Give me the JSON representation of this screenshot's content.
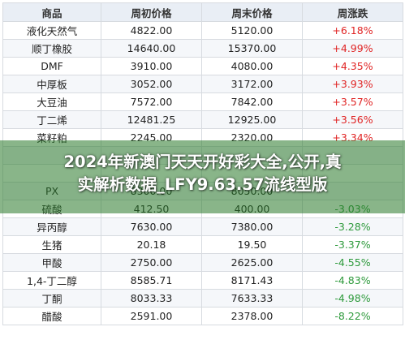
{
  "table": {
    "headers": [
      "商品",
      "周初价格",
      "周末价格",
      "周涨跌"
    ],
    "rows": [
      {
        "name": "液化天然气",
        "start": "4822.00",
        "end": "5120.00",
        "change": "+6.18%",
        "dir": "up"
      },
      {
        "name": "顺丁橡胶",
        "start": "14640.00",
        "end": "15370.00",
        "change": "+4.99%",
        "dir": "up"
      },
      {
        "name": "DMF",
        "start": "3910.00",
        "end": "4080.00",
        "change": "+4.35%",
        "dir": "up"
      },
      {
        "name": "中厚板",
        "start": "3052.00",
        "end": "3172.00",
        "change": "+3.93%",
        "dir": "up"
      },
      {
        "name": "大豆油",
        "start": "7572.00",
        "end": "7842.00",
        "change": "+3.57%",
        "dir": "up"
      },
      {
        "name": "丁二烯",
        "start": "12481.25",
        "end": "12925.00",
        "change": "+3.56%",
        "dir": "up"
      },
      {
        "name": "菜籽粕",
        "start": "2245.00",
        "end": "2320.00",
        "change": "+3.34%",
        "dir": "up"
      },
      {
        "name": "",
        "start": "",
        "end": "",
        "change": "",
        "dir": "up"
      },
      {
        "name": "",
        "start": "",
        "end": "",
        "change": "",
        "dir": "up"
      },
      {
        "name": "PX",
        "start": "8300.00",
        "end": "8050.00",
        "change": "",
        "dir": "down"
      },
      {
        "name": "硫酸",
        "start": "412.50",
        "end": "400.00",
        "change": "-3.03%",
        "dir": "down"
      },
      {
        "name": "异丙醇",
        "start": "7630.00",
        "end": "7380.00",
        "change": "-3.28%",
        "dir": "down"
      },
      {
        "name": "生猪",
        "start": "20.18",
        "end": "19.50",
        "change": "-3.37%",
        "dir": "down"
      },
      {
        "name": "甲酸",
        "start": "2750.00",
        "end": "2625.00",
        "change": "-4.55%",
        "dir": "down"
      },
      {
        "name": "1,4-丁二醇",
        "start": "8585.71",
        "end": "8171.43",
        "change": "-4.83%",
        "dir": "down"
      },
      {
        "name": "丁酮",
        "start": "8033.33",
        "end": "7633.33",
        "change": "-4.98%",
        "dir": "down"
      },
      {
        "name": "醋酸",
        "start": "2591.00",
        "end": "2378.00",
        "change": "-8.22%",
        "dir": "down"
      }
    ]
  },
  "banner": {
    "line1": "2024年新澳门天天开好彩大全,公开,真",
    "line2": "实解析数据_LFY9.63.57流线型版"
  }
}
